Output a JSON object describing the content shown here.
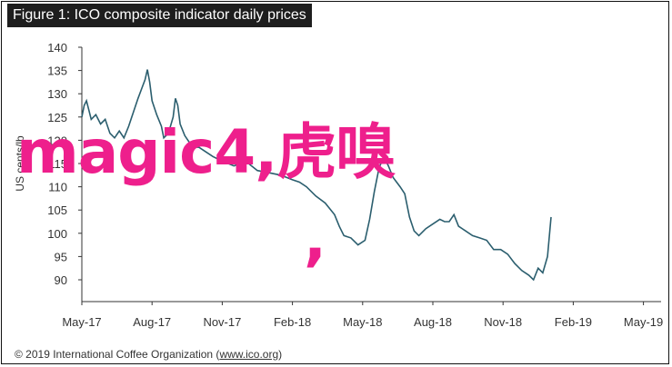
{
  "figure": {
    "title": "Figure 1: ICO composite indicator daily prices",
    "footer_prefix": "© 2019 International Coffee Organization (",
    "footer_link": "www.ico.org",
    "footer_suffix": ")"
  },
  "overlay": {
    "text": "magic4,虎嗅",
    "text2": ","
  },
  "colors": {
    "line": "#2b5e6e",
    "overlay": "#ee1f8c",
    "axis": "#333333"
  },
  "chart_data": {
    "type": "line",
    "title": "Figure 1: ICO composite indicator daily prices",
    "xlabel": "",
    "ylabel": "US cents/lb",
    "ylim": [
      90,
      140
    ],
    "yticks": [
      90,
      95,
      100,
      105,
      110,
      115,
      120,
      125,
      130,
      135,
      140
    ],
    "xticks": [
      "May-17",
      "Aug-17",
      "Nov-17",
      "Feb-18",
      "May-18",
      "Aug-18",
      "Nov-18",
      "Feb-19",
      "May-19"
    ],
    "grid": false,
    "series": [
      {
        "values": [
          [
            0,
            125.0
          ],
          [
            0.1,
            127.5
          ],
          [
            0.2,
            128.5
          ],
          [
            0.3,
            126.5
          ],
          [
            0.4,
            124.5
          ],
          [
            0.6,
            125.5
          ],
          [
            0.8,
            123.5
          ],
          [
            1.0,
            124.5
          ],
          [
            1.2,
            121.5
          ],
          [
            1.4,
            120.5
          ],
          [
            1.6,
            122.0
          ],
          [
            1.8,
            120.5
          ],
          [
            2.0,
            123.0
          ],
          [
            2.2,
            126.0
          ],
          [
            2.4,
            129.0
          ],
          [
            2.55,
            131.0
          ],
          [
            2.7,
            133.0
          ],
          [
            2.8,
            135.2
          ],
          [
            2.9,
            132.5
          ],
          [
            3.0,
            128.5
          ],
          [
            3.2,
            125.5
          ],
          [
            3.4,
            123.0
          ],
          [
            3.5,
            120.5
          ],
          [
            3.7,
            121.5
          ],
          [
            3.9,
            125.0
          ],
          [
            4.0,
            129.0
          ],
          [
            4.1,
            127.5
          ],
          [
            4.2,
            123.5
          ],
          [
            4.4,
            121.0
          ],
          [
            4.6,
            119.5
          ],
          [
            4.8,
            118.5
          ],
          [
            5.0,
            118.5
          ],
          [
            5.3,
            117.5
          ],
          [
            5.6,
            116.5
          ],
          [
            6.0,
            115.5
          ],
          [
            6.5,
            114.5
          ],
          [
            7.0,
            115.5
          ],
          [
            7.5,
            113.5
          ],
          [
            8.0,
            113.0
          ],
          [
            8.5,
            112.5
          ],
          [
            9.0,
            111.5
          ],
          [
            9.3,
            111.0
          ],
          [
            9.6,
            110.0
          ],
          [
            10.0,
            108.0
          ],
          [
            10.4,
            106.5
          ],
          [
            10.8,
            104.0
          ],
          [
            11.0,
            101.5
          ],
          [
            11.2,
            99.5
          ],
          [
            11.5,
            99.0
          ],
          [
            11.8,
            97.5
          ],
          [
            12.1,
            98.5
          ],
          [
            12.3,
            103.0
          ],
          [
            12.5,
            109.0
          ],
          [
            12.7,
            114.0
          ],
          [
            12.9,
            116.5
          ],
          [
            13.1,
            114.5
          ],
          [
            13.3,
            112.0
          ],
          [
            13.6,
            110.0
          ],
          [
            13.8,
            108.5
          ],
          [
            14.0,
            103.5
          ],
          [
            14.2,
            100.5
          ],
          [
            14.4,
            99.5
          ],
          [
            14.7,
            101.0
          ],
          [
            15.0,
            102.0
          ],
          [
            15.3,
            103.0
          ],
          [
            15.5,
            102.5
          ],
          [
            15.7,
            102.5
          ],
          [
            15.9,
            104.0
          ],
          [
            16.1,
            101.5
          ],
          [
            16.4,
            100.5
          ],
          [
            16.7,
            99.5
          ],
          [
            17.0,
            99.0
          ],
          [
            17.3,
            98.5
          ],
          [
            17.6,
            96.5
          ],
          [
            17.9,
            96.5
          ],
          [
            18.2,
            95.5
          ],
          [
            18.5,
            93.5
          ],
          [
            18.8,
            92.0
          ],
          [
            19.1,
            91.0
          ],
          [
            19.3,
            90.0
          ],
          [
            19.5,
            92.5
          ],
          [
            19.7,
            91.5
          ],
          [
            19.9,
            95.0
          ],
          [
            20.05,
            103.5
          ]
        ]
      }
    ]
  }
}
